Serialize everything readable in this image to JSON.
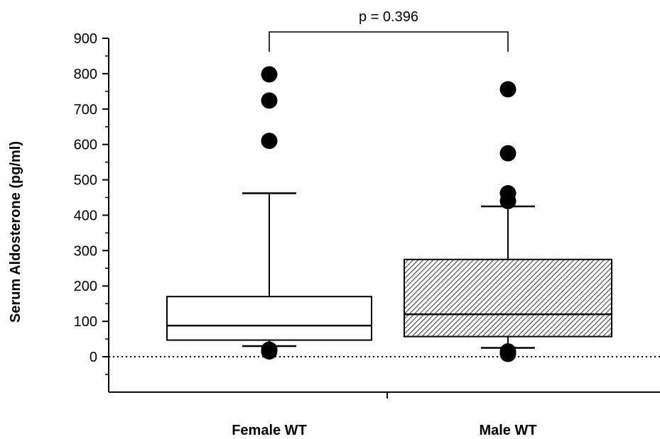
{
  "chart_data": {
    "type": "box",
    "ylabel": "Serum Aldosterone (pg/ml)",
    "xlabel": "",
    "ylim": [
      -100,
      900
    ],
    "yticks": [
      0,
      100,
      200,
      300,
      400,
      500,
      600,
      700,
      800,
      900
    ],
    "categories": [
      "Female WT",
      "Male WT"
    ],
    "boxes": [
      {
        "category": "Female WT",
        "whisker_low": 30,
        "q1": 47,
        "median": 88,
        "q3": 170,
        "whisker_high": 462,
        "outliers": [
          15,
          20,
          610,
          724,
          798
        ],
        "fill": "none"
      },
      {
        "category": "Male WT",
        "whisker_low": 25,
        "q1": 57,
        "median": 120,
        "q3": 275,
        "whisker_high": 425,
        "outliers": [
          8,
          15,
          440,
          462,
          575,
          756
        ],
        "fill": "hatched"
      }
    ],
    "reference_line": {
      "y": 0,
      "style": "dotted"
    },
    "annotations": [
      {
        "text": "p = 0.396",
        "between": [
          "Female WT",
          "Male WT"
        ]
      }
    ],
    "grid": false,
    "legend": "none"
  }
}
